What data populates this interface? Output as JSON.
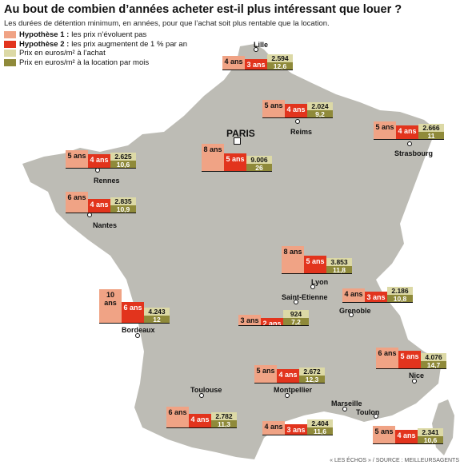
{
  "title": "Au bout de combien d’années acheter est-il plus intéressant que louer ?",
  "subtitle": "Les durées de détention minimum, en années, pour que l’achat soit plus rentable que la location.",
  "legend": [
    {
      "label_bold": "Hypothèse 1 :",
      "label": "les prix n’évoluent pas",
      "color": "#f0a385"
    },
    {
      "label_bold": "Hypothèse 2 :",
      "label": "les prix augmentent de 1 % par an",
      "color": "#e2341d"
    },
    {
      "label_bold": "",
      "label": "Prix en euros/m² à l’achat",
      "color": "#dcd9a6"
    },
    {
      "label_bold": "",
      "label": "Prix en euros/m² à la location par mois",
      "color": "#8f8a3a"
    }
  ],
  "cities": [
    {
      "name": "Lille",
      "h1": "4 ans",
      "h1_years": 4,
      "h2": "3 ans",
      "h2_years": 3,
      "buy": "2.594",
      "rent": "12,6"
    },
    {
      "name": "Reims",
      "h1": "5 ans",
      "h1_years": 5,
      "h2": "4 ans",
      "h2_years": 4,
      "buy": "2.024",
      "rent": "9,2"
    },
    {
      "name": "Strasbourg",
      "h1": "5 ans",
      "h1_years": 5,
      "h2": "4 ans",
      "h2_years": 4,
      "buy": "2.666",
      "rent": "11"
    },
    {
      "name": "PARIS",
      "h1": "8 ans",
      "h1_years": 8,
      "h2": "5 ans",
      "h2_years": 5,
      "buy": "9.006",
      "rent": "26"
    },
    {
      "name": "Rennes",
      "h1": "5 ans",
      "h1_years": 5,
      "h2": "4 ans",
      "h2_years": 4,
      "buy": "2.625",
      "rent": "10,6"
    },
    {
      "name": "Nantes",
      "h1": "6 ans",
      "h1_years": 6,
      "h2": "4 ans",
      "h2_years": 4,
      "buy": "2.835",
      "rent": "10,9"
    },
    {
      "name": "Lyon",
      "h1": "8 ans",
      "h1_years": 8,
      "h2": "5 ans",
      "h2_years": 5,
      "buy": "3.853",
      "rent": "11,8"
    },
    {
      "name": "Grenoble",
      "h1": "4 ans",
      "h1_years": 4,
      "h2": "3 ans",
      "h2_years": 3,
      "buy": "2.186",
      "rent": "10,8"
    },
    {
      "name": "Saint-Etienne",
      "h1": "3 ans",
      "h1_years": 3,
      "h2": "2 ans",
      "h2_years": 2,
      "buy": "924",
      "rent": "7,2"
    },
    {
      "name": "Bordeaux",
      "h1": "10 ans",
      "h1_years": 10,
      "h2": "6 ans",
      "h2_years": 6,
      "buy": "4.243",
      "rent": "12"
    },
    {
      "name": "Nice",
      "h1": "6 ans",
      "h1_years": 6,
      "h2": "5 ans",
      "h2_years": 5,
      "buy": "4.076",
      "rent": "14,7"
    },
    {
      "name": "Montpellier",
      "h1": "5 ans",
      "h1_years": 5,
      "h2": "4 ans",
      "h2_years": 4,
      "buy": "2.672",
      "rent": "12,3"
    },
    {
      "name": "Toulouse",
      "h1": "6 ans",
      "h1_years": 6,
      "h2": "4 ans",
      "h2_years": 4,
      "buy": "2.782",
      "rent": "11,3"
    },
    {
      "name": "Marseille",
      "h1": "4 ans",
      "h1_years": 4,
      "h2": "3 ans",
      "h2_years": 3,
      "buy": "2.404",
      "rent": "11,6"
    },
    {
      "name": "Toulon",
      "h1": "5 ans",
      "h1_years": 5,
      "h2": "4 ans",
      "h2_years": 4,
      "buy": "2.341",
      "rent": "10,6"
    }
  ],
  "source": "« LES ÉCHOS » / SOURCE : MEILLEURSAGENTS"
}
